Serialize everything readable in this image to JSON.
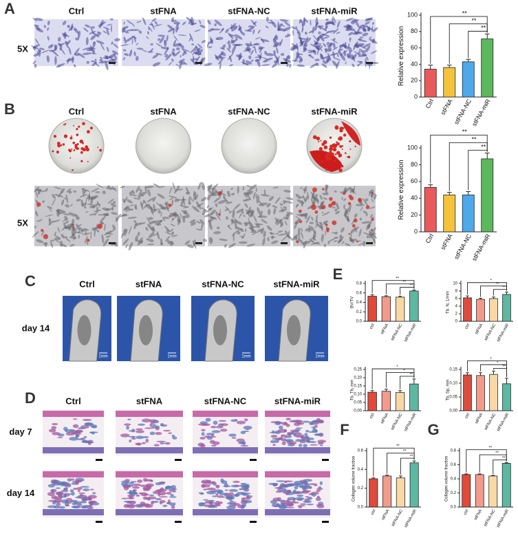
{
  "figure": {
    "A": {
      "letter": "A",
      "columns": [
        "Ctrl",
        "stFNA",
        "stFNA-NC",
        "stFNA-miR"
      ],
      "row_label": "5X"
    },
    "B": {
      "letter": "B",
      "columns": [
        "Ctrl",
        "stFNA",
        "stFNA-NC",
        "stFNA-miR"
      ],
      "row_label": "5X"
    },
    "C": {
      "letter": "C",
      "columns": [
        "Ctrl",
        "stFNA",
        "stFNA-NC",
        "stFNA-miR"
      ],
      "row_label": "day 14",
      "scale_bar": "1mm"
    },
    "D": {
      "letter": "D",
      "columns": [
        "Ctrl",
        "stFNA",
        "stFNA-NC",
        "stFNA-miR"
      ],
      "row_labels": [
        "day 7",
        "day 14"
      ]
    },
    "E": {
      "letter": "E"
    },
    "F": {
      "letter": "F"
    },
    "G": {
      "letter": "G"
    }
  },
  "chart_data": [
    {
      "type": "bar",
      "ylabel": "Relative expression",
      "categories": [
        "Ctrl",
        "stFNA",
        "stFNA-NC",
        "stFNA-miR"
      ],
      "values": [
        34,
        36,
        43,
        71
      ],
      "errors": [
        5,
        3,
        3,
        6
      ],
      "colors": [
        "#e85a5c",
        "#f5c33b",
        "#4fa8ea",
        "#5cb85c"
      ],
      "ylim": [
        0,
        100
      ],
      "yticks": [
        0,
        20,
        40,
        60,
        80,
        100
      ],
      "brackets": [
        {
          "from": 0,
          "to": 3,
          "label": "**"
        },
        {
          "from": 1,
          "to": 3,
          "label": "**"
        },
        {
          "from": 2,
          "to": 3,
          "label": "**"
        }
      ]
    },
    {
      "type": "bar",
      "ylabel": "Relative expression",
      "categories": [
        "Ctrl",
        "stFNA",
        "stFNA-NC",
        "stFNA-miR"
      ],
      "values": [
        53,
        44,
        44,
        87
      ],
      "errors": [
        3,
        3,
        4,
        7
      ],
      "colors": [
        "#e85a5c",
        "#f5c33b",
        "#4fa8ea",
        "#5cb85c"
      ],
      "ylim": [
        0,
        100
      ],
      "yticks": [
        0,
        20,
        40,
        60,
        80,
        100
      ],
      "brackets": [
        {
          "from": 0,
          "to": 3,
          "label": "**"
        },
        {
          "from": 1,
          "to": 3,
          "label": "**"
        },
        {
          "from": 2,
          "to": 3,
          "label": "**"
        }
      ]
    },
    {
      "type": "bar",
      "ylabel": "BV/TV",
      "categories": [
        "ctrl",
        "stFNA",
        "stFNA-NC",
        "stFNA-miR"
      ],
      "values": [
        0.53,
        0.52,
        0.51,
        0.64
      ],
      "errors": [
        0.03,
        0.02,
        0.02,
        0.02
      ],
      "colors": [
        "#e04a3a",
        "#f29a8c",
        "#f8d9a6",
        "#5db8a2"
      ],
      "ylim": [
        0,
        0.8
      ],
      "yticks": [
        {
          "value": 0,
          "label": "0.0"
        },
        0.2,
        0.4,
        0.6,
        0.8
      ],
      "brackets": [
        {
          "from": 0,
          "to": 3,
          "label": "**"
        },
        {
          "from": 1,
          "to": 3,
          "label": "**"
        },
        {
          "from": 2,
          "to": 3,
          "label": "**"
        }
      ]
    },
    {
      "type": "bar",
      "ylabel": "Tb. N, 1/mm",
      "categories": [
        "ctrl",
        "stFNA",
        "stFNA-NC",
        "stFNA-miR"
      ],
      "values": [
        6.2,
        5.8,
        6.0,
        7.1
      ],
      "errors": [
        0.5,
        0.3,
        0.4,
        0.6
      ],
      "colors": [
        "#e04a3a",
        "#f29a8c",
        "#f8d9a6",
        "#5db8a2"
      ],
      "ylim": [
        0,
        10
      ],
      "yticks": [
        0,
        2,
        4,
        6,
        8,
        10
      ],
      "brackets": [
        {
          "from": 0,
          "to": 3,
          "label": "*"
        },
        {
          "from": 1,
          "to": 3,
          "label": "**"
        },
        {
          "from": 2,
          "to": 3,
          "label": "**"
        }
      ]
    },
    {
      "type": "bar",
      "ylabel": "Tb. Th, mm",
      "categories": [
        "ctrl",
        "stFNA",
        "stFNA-NC",
        "stFNA-miR"
      ],
      "values": [
        0.112,
        0.118,
        0.11,
        0.162
      ],
      "errors": [
        0.01,
        0.012,
        0.012,
        0.03
      ],
      "colors": [
        "#e04a3a",
        "#f29a8c",
        "#f8d9a6",
        "#5db8a2"
      ],
      "ylim": [
        0,
        0.25
      ],
      "yticks": [
        {
          "value": 0,
          "label": "0.00"
        },
        0.05,
        {
          "value": 0.1,
          "label": "0.10"
        },
        0.15,
        {
          "value": 0.2,
          "label": "0.20"
        },
        0.25
      ],
      "brackets": [
        {
          "from": 0,
          "to": 3,
          "label": "*"
        },
        {
          "from": 1,
          "to": 3,
          "label": "*"
        },
        {
          "from": 2,
          "to": 3,
          "label": "**"
        }
      ]
    },
    {
      "type": "bar",
      "ylabel": "Tb. Sp, mm",
      "categories": [
        "ctrl",
        "stFNA",
        "stFNA-NC",
        "stFNA-miR"
      ],
      "values": [
        0.13,
        0.128,
        0.132,
        0.098
      ],
      "errors": [
        0.008,
        0.01,
        0.012,
        0.02
      ],
      "colors": [
        "#e04a3a",
        "#f29a8c",
        "#f8d9a6",
        "#5db8a2"
      ],
      "ylim": [
        0,
        0.15
      ],
      "yticks": [
        {
          "value": 0,
          "label": "0.00"
        },
        0.05,
        {
          "value": 0.1,
          "label": "0.10"
        },
        0.15
      ],
      "brackets": [
        {
          "from": 0,
          "to": 3,
          "label": "*"
        },
        {
          "from": 1,
          "to": 3,
          "label": "*"
        },
        {
          "from": 2,
          "to": 3,
          "label": "**"
        }
      ]
    },
    {
      "type": "bar",
      "ylabel": "Collagen volume fraction",
      "categories": [
        "ctrl",
        "stFNA",
        "stFNA-NC",
        "stFNA-miR"
      ],
      "values": [
        0.3,
        0.33,
        0.31,
        0.47
      ],
      "errors": [
        0.01,
        0.01,
        0.02,
        0.02
      ],
      "colors": [
        "#e04a3a",
        "#f29a8c",
        "#f8d9a6",
        "#5db8a2"
      ],
      "ylim": [
        0,
        0.6
      ],
      "yticks": [
        {
          "value": 0,
          "label": "0.0"
        },
        0.2,
        0.4,
        0.6
      ],
      "brackets": [
        {
          "from": 0,
          "to": 3,
          "label": "**"
        },
        {
          "from": 1,
          "to": 3,
          "label": "**"
        },
        {
          "from": 2,
          "to": 3,
          "label": "**"
        }
      ]
    },
    {
      "type": "bar",
      "ylabel": "Collagen volume fraction",
      "categories": [
        "ctrl",
        "stFNA",
        "stFNA-NC",
        "stFNA-miR"
      ],
      "values": [
        0.46,
        0.46,
        0.44,
        0.62
      ],
      "errors": [
        0.01,
        0.01,
        0.01,
        0.01
      ],
      "colors": [
        "#e04a3a",
        "#f29a8c",
        "#f8d9a6",
        "#5db8a2"
      ],
      "ylim": [
        0,
        0.8
      ],
      "yticks": [
        {
          "value": 0,
          "label": "0.0"
        },
        0.2,
        0.4,
        0.6,
        0.8
      ],
      "brackets": [
        {
          "from": 0,
          "to": 3,
          "label": "**"
        },
        {
          "from": 1,
          "to": 3,
          "label": "**"
        },
        {
          "from": 2,
          "to": 3,
          "label": "**"
        }
      ]
    }
  ]
}
